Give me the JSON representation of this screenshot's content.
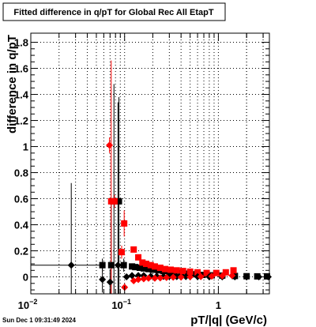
{
  "footer": {
    "timestamp": "Sun Dec  1 09:31:49 2024"
  },
  "chart_data": {
    "type": "scatter",
    "title": "Fitted difference in q/pT for Global Rec All EtapT",
    "xlabel": "pT/|q| (GeV/c)",
    "ylabel": "difference in q/pT",
    "x_scale": "log",
    "xlim": [
      0.01,
      3.5
    ],
    "ylim": [
      -0.13,
      1.87
    ],
    "grid": true,
    "legend": "none",
    "x_ticks": [
      {
        "value": 0.01,
        "label": "10",
        "exp": "−2"
      },
      {
        "value": 0.1,
        "label": "10",
        "exp": "−1"
      },
      {
        "value": 1,
        "label": "1",
        "exp": ""
      }
    ],
    "y_ticks": [
      {
        "value": 0,
        "label": "0"
      },
      {
        "value": 0.2,
        "label": "0.2"
      },
      {
        "value": 0.4,
        "label": "0.4"
      },
      {
        "value": 0.6,
        "label": "0.6"
      },
      {
        "value": 0.8,
        "label": "0.8"
      },
      {
        "value": 1,
        "label": "1"
      },
      {
        "value": 1.2,
        "label": "1.2"
      },
      {
        "value": 1.4,
        "label": "1.4"
      },
      {
        "value": 1.6,
        "label": "1.6"
      },
      {
        "value": 1.8,
        "label": "1.8"
      }
    ],
    "series": [
      {
        "color": "#000000",
        "marker": "square",
        "points": [
          {
            "x": 0.058,
            "y": 0.09,
            "err": 0.05
          },
          {
            "x": 0.072,
            "y": 0.09,
            "err": 0.5
          },
          {
            "x": 0.077,
            "y": 0.58,
            "err": 0.9
          },
          {
            "x": 0.087,
            "y": 0.58,
            "err": 0.8
          },
          {
            "x": 0.098,
            "y": 0.09,
            "err": 0.05
          },
          {
            "x": 0.12,
            "y": 0.08,
            "err": 0.01
          },
          {
            "x": 0.13,
            "y": 0.075,
            "err": 0.01
          },
          {
            "x": 0.145,
            "y": 0.07,
            "err": 0.01
          },
          {
            "x": 0.16,
            "y": 0.065,
            "err": 0.01
          },
          {
            "x": 0.18,
            "y": 0.06,
            "err": 0.01
          },
          {
            "x": 0.2,
            "y": 0.055,
            "err": 0.01
          },
          {
            "x": 0.23,
            "y": 0.05,
            "err": 0.01
          },
          {
            "x": 0.26,
            "y": 0.045,
            "err": 0.01
          },
          {
            "x": 0.3,
            "y": 0.04,
            "err": 0.01
          },
          {
            "x": 0.34,
            "y": 0.035,
            "err": 0.01
          },
          {
            "x": 0.4,
            "y": 0.03,
            "err": 0.01
          },
          {
            "x": 0.47,
            "y": 0.025,
            "err": 0.01
          },
          {
            "x": 0.56,
            "y": 0.02,
            "err": 0.01
          },
          {
            "x": 0.68,
            "y": 0.015,
            "err": 0.01
          },
          {
            "x": 0.85,
            "y": 0.012,
            "err": 0.01
          },
          {
            "x": 1.1,
            "y": 0.01,
            "err": 0.01
          },
          {
            "x": 1.5,
            "y": 0.007,
            "err": 0.01
          },
          {
            "x": 2.0,
            "y": 0.005,
            "err": 0.01
          },
          {
            "x": 2.6,
            "y": 0.004,
            "err": 0.01
          },
          {
            "x": 3.3,
            "y": 0.004,
            "err": 0.01
          }
        ]
      },
      {
        "color": "#ff0000",
        "marker": "square",
        "points": [
          {
            "x": 0.072,
            "y": 0.58,
            "err": 1.08
          },
          {
            "x": 0.078,
            "y": 0.58,
            "err": 0.05
          },
          {
            "x": 0.093,
            "y": 0.19,
            "err": 0.05
          },
          {
            "x": 0.099,
            "y": 0.41,
            "err": 0.1
          },
          {
            "x": 0.125,
            "y": 0.21,
            "err": 0.02
          },
          {
            "x": 0.14,
            "y": 0.15,
            "err": 0.01
          },
          {
            "x": 0.155,
            "y": 0.11,
            "err": 0.01
          },
          {
            "x": 0.17,
            "y": 0.1,
            "err": 0.01
          },
          {
            "x": 0.19,
            "y": 0.09,
            "err": 0.01
          },
          {
            "x": 0.21,
            "y": 0.08,
            "err": 0.01
          },
          {
            "x": 0.24,
            "y": 0.07,
            "err": 0.01
          },
          {
            "x": 0.27,
            "y": 0.06,
            "err": 0.01
          },
          {
            "x": 0.31,
            "y": 0.055,
            "err": 0.01
          },
          {
            "x": 0.36,
            "y": 0.05,
            "err": 0.01
          },
          {
            "x": 0.42,
            "y": 0.045,
            "err": 0.01
          },
          {
            "x": 0.5,
            "y": 0.04,
            "err": 0.01
          },
          {
            "x": 0.6,
            "y": 0.035,
            "err": 0.01
          },
          {
            "x": 0.75,
            "y": 0.03,
            "err": 0.01
          },
          {
            "x": 0.95,
            "y": 0.03,
            "err": 0.01
          },
          {
            "x": 1.2,
            "y": 0.035,
            "err": 0.01
          },
          {
            "x": 1.45,
            "y": 0.05,
            "err": 0.02
          }
        ]
      },
      {
        "color": "#000000",
        "marker": "diamond",
        "points": [
          {
            "x": 0.027,
            "y": 0.09,
            "err": 0.63
          },
          {
            "x": 0.058,
            "y": -0.02,
            "err": 0.1
          },
          {
            "x": 0.07,
            "y": -0.04,
            "err": 0.1
          },
          {
            "x": 0.085,
            "y": 0.09,
            "err": 1.25
          },
          {
            "x": 0.105,
            "y": 0.0,
            "err": 0.02
          },
          {
            "x": 0.12,
            "y": 0.01,
            "err": 0.01
          },
          {
            "x": 0.14,
            "y": 0.01,
            "err": 0.01
          },
          {
            "x": 0.16,
            "y": 0.01,
            "err": 0.01
          },
          {
            "x": 0.19,
            "y": 0.005,
            "err": 0.01
          },
          {
            "x": 0.22,
            "y": 0.005,
            "err": 0.01
          },
          {
            "x": 0.26,
            "y": 0.003,
            "err": 0.01
          },
          {
            "x": 0.3,
            "y": 0.003,
            "err": 0.01
          },
          {
            "x": 0.36,
            "y": 0.002,
            "err": 0.01
          },
          {
            "x": 0.45,
            "y": 0.002,
            "err": 0.01
          },
          {
            "x": 0.6,
            "y": 0.002,
            "err": 0.01
          },
          {
            "x": 0.8,
            "y": 0.0,
            "err": 0.01
          },
          {
            "x": 1.1,
            "y": 0.0,
            "err": 0.01
          },
          {
            "x": 1.5,
            "y": 0.0,
            "err": 0.01
          },
          {
            "x": 2.0,
            "y": 0.0,
            "err": 0.01
          },
          {
            "x": 2.7,
            "y": 0.0,
            "err": 0.01
          },
          {
            "x": 3.4,
            "y": 0.0,
            "err": 0.01
          }
        ]
      },
      {
        "color": "#ff0000",
        "marker": "diamond",
        "points": [
          {
            "x": 0.069,
            "y": 1.01,
            "err": 0.06
          },
          {
            "x": 0.1,
            "y": -0.08,
            "err": 0.03
          },
          {
            "x": 0.125,
            "y": -0.03,
            "err": 0.02
          },
          {
            "x": 0.14,
            "y": -0.02,
            "err": 0.01
          },
          {
            "x": 0.16,
            "y": -0.015,
            "err": 0.01
          },
          {
            "x": 0.18,
            "y": -0.01,
            "err": 0.01
          },
          {
            "x": 0.21,
            "y": -0.01,
            "err": 0.01
          },
          {
            "x": 0.24,
            "y": -0.008,
            "err": 0.01
          },
          {
            "x": 0.28,
            "y": -0.005,
            "err": 0.01
          },
          {
            "x": 0.33,
            "y": -0.003,
            "err": 0.01
          },
          {
            "x": 0.4,
            "y": -0.002,
            "err": 0.01
          },
          {
            "x": 0.5,
            "y": 0.0,
            "err": 0.01
          },
          {
            "x": 0.65,
            "y": 0.002,
            "err": 0.01
          },
          {
            "x": 0.85,
            "y": 0.005,
            "err": 0.01
          },
          {
            "x": 1.1,
            "y": 0.008,
            "err": 0.01
          },
          {
            "x": 1.4,
            "y": 0.01,
            "err": 0.01
          }
        ]
      }
    ]
  }
}
